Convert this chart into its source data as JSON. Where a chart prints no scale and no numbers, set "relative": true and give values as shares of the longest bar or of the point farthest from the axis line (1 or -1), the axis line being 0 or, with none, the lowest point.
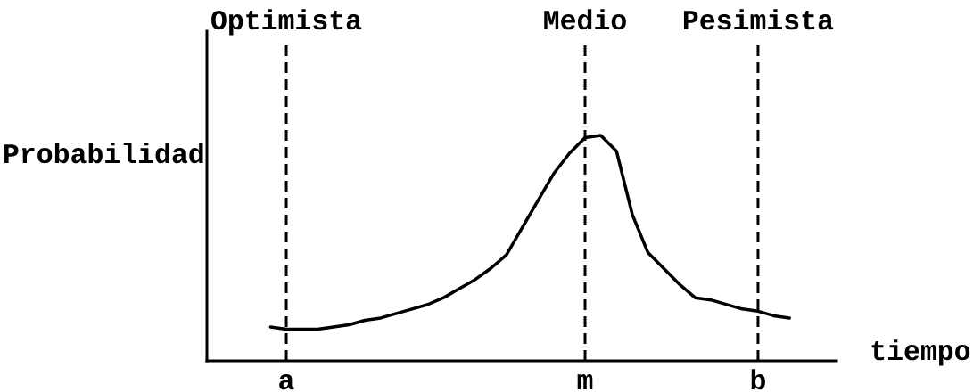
{
  "chart_data": {
    "type": "line",
    "xlabel": "tiempo",
    "ylabel": "Probabilidad",
    "relative": true,
    "categories": [
      null,
      "a",
      null,
      null,
      null,
      null,
      null,
      null,
      null,
      null,
      null,
      null,
      null,
      null,
      null,
      null,
      null,
      null,
      null,
      null,
      "m",
      null,
      null,
      null,
      null,
      null,
      null,
      null,
      null,
      null,
      null,
      "b",
      null,
      null
    ],
    "series": [
      {
        "color": "#000000",
        "values": [
          0.15,
          0.14,
          0.14,
          0.14,
          0.15,
          0.16,
          0.18,
          0.19,
          0.21,
          0.23,
          0.25,
          0.28,
          0.32,
          0.36,
          0.41,
          0.47,
          0.59,
          0.71,
          0.83,
          0.92,
          0.99,
          1,
          0.93,
          0.65,
          0.48,
          0.41,
          0.34,
          0.28,
          0.27,
          0.25,
          0.23,
          0.22,
          0.2,
          0.19
        ]
      }
    ],
    "ref_lines": [
      {
        "axis": "x",
        "value": "a",
        "label": "Optimista",
        "line_style": "dashed"
      },
      {
        "axis": "x",
        "value": "m",
        "label": "Medio",
        "line_style": "dashed"
      },
      {
        "axis": "x",
        "value": "b",
        "label": "Pesimista",
        "line_style": "dashed"
      }
    ]
  }
}
